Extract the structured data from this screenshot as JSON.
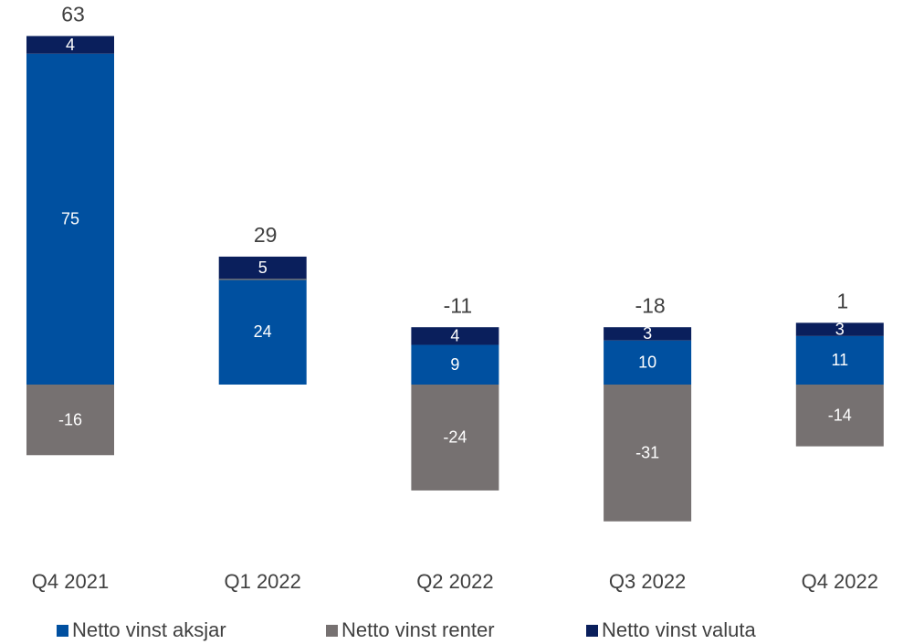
{
  "chart_data": {
    "type": "bar",
    "stacked": true,
    "categories": [
      "Q4 2021",
      "Q1 2022",
      "Q2 2022",
      "Q3 2022",
      "Q4 2022"
    ],
    "series": [
      {
        "name": "Netto vinst aksjar",
        "color": "#0050a0",
        "values": [
          75,
          24,
          9,
          10,
          11
        ]
      },
      {
        "name": "Netto vinst renter",
        "color": "#767171",
        "values": [
          -16,
          0,
          -24,
          -31,
          -14
        ],
        "value_labels": [
          "-16",
          null,
          "-24",
          "-31",
          "-14"
        ]
      },
      {
        "name": "Netto vinst valuta",
        "color": "#0a1f5c",
        "values": [
          4,
          5,
          4,
          3,
          3
        ]
      }
    ],
    "totals": [
      63,
      29,
      -11,
      -18,
      1
    ],
    "legend": "bottom"
  }
}
